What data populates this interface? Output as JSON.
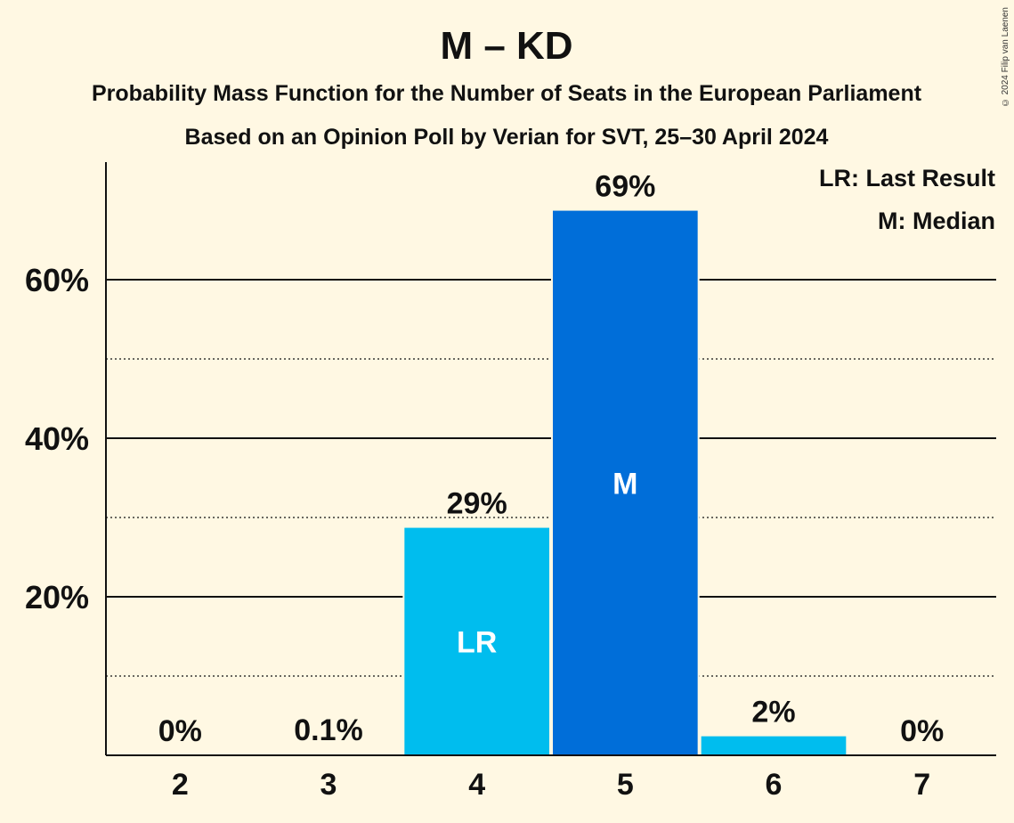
{
  "chart_data": {
    "type": "bar",
    "title": "M – KD",
    "subtitle": "Probability Mass Function for the Number of Seats in the European Parliament",
    "subtitle2": "Based on an Opinion Poll by Verian for SVT, 25–30 April 2024",
    "categories": [
      "2",
      "3",
      "4",
      "5",
      "6",
      "7"
    ],
    "values": [
      0,
      0.1,
      28.7,
      68.7,
      2.4,
      0
    ],
    "value_labels": [
      "0%",
      "0.1%",
      "29%",
      "69%",
      "2%",
      "0%"
    ],
    "bar_markers": [
      "",
      "",
      "LR",
      "M",
      "",
      ""
    ],
    "bar_colors": [
      "#00BDEE",
      "#00BDEE",
      "#00BDEE",
      "#006ED9",
      "#00BDEE",
      "#00BDEE"
    ],
    "ylim": [
      0,
      75
    ],
    "yticks": [
      20,
      40,
      60
    ],
    "ytick_labels": [
      "20%",
      "40%",
      "60%"
    ],
    "minor_gridlines": [
      10,
      30,
      50
    ],
    "legend": [
      "LR: Last Result",
      "M: Median"
    ],
    "legend_position": "top-right",
    "grid": true
  },
  "copyright": "© 2024 Filip van Laenen",
  "colors": {
    "background": "#FFF8E3",
    "last_result_bar": "#00BDEE",
    "median_bar": "#006ED9"
  }
}
